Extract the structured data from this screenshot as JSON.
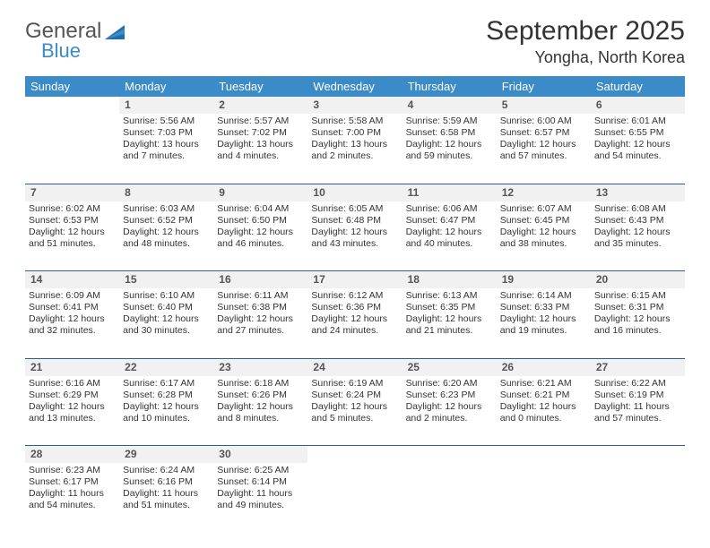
{
  "brand": {
    "word1": "General",
    "word2": "Blue",
    "word1_color": "#555555",
    "word2_color": "#3b8bc9"
  },
  "title": "September 2025",
  "location": "Yongha, North Korea",
  "colors": {
    "header_bg": "#3b8bc9",
    "header_text": "#ffffff",
    "daynum_bg": "#f1f1f1",
    "daynum_text": "#555555",
    "cell_text": "#333333",
    "rule": "#2f5e8a",
    "page_bg": "#ffffff"
  },
  "fonts": {
    "title_size_pt": 22,
    "location_size_pt": 14,
    "weekday_size_pt": 10,
    "cell_size_pt": 8
  },
  "calendar": {
    "type": "table",
    "weekdays": [
      "Sunday",
      "Monday",
      "Tuesday",
      "Wednesday",
      "Thursday",
      "Friday",
      "Saturday"
    ],
    "start_offset": 1,
    "days": [
      {
        "n": 1,
        "sr": "5:56 AM",
        "ss": "7:03 PM",
        "dl": "13 hours and 7 minutes."
      },
      {
        "n": 2,
        "sr": "5:57 AM",
        "ss": "7:02 PM",
        "dl": "13 hours and 4 minutes."
      },
      {
        "n": 3,
        "sr": "5:58 AM",
        "ss": "7:00 PM",
        "dl": "13 hours and 2 minutes."
      },
      {
        "n": 4,
        "sr": "5:59 AM",
        "ss": "6:58 PM",
        "dl": "12 hours and 59 minutes."
      },
      {
        "n": 5,
        "sr": "6:00 AM",
        "ss": "6:57 PM",
        "dl": "12 hours and 57 minutes."
      },
      {
        "n": 6,
        "sr": "6:01 AM",
        "ss": "6:55 PM",
        "dl": "12 hours and 54 minutes."
      },
      {
        "n": 7,
        "sr": "6:02 AM",
        "ss": "6:53 PM",
        "dl": "12 hours and 51 minutes."
      },
      {
        "n": 8,
        "sr": "6:03 AM",
        "ss": "6:52 PM",
        "dl": "12 hours and 48 minutes."
      },
      {
        "n": 9,
        "sr": "6:04 AM",
        "ss": "6:50 PM",
        "dl": "12 hours and 46 minutes."
      },
      {
        "n": 10,
        "sr": "6:05 AM",
        "ss": "6:48 PM",
        "dl": "12 hours and 43 minutes."
      },
      {
        "n": 11,
        "sr": "6:06 AM",
        "ss": "6:47 PM",
        "dl": "12 hours and 40 minutes."
      },
      {
        "n": 12,
        "sr": "6:07 AM",
        "ss": "6:45 PM",
        "dl": "12 hours and 38 minutes."
      },
      {
        "n": 13,
        "sr": "6:08 AM",
        "ss": "6:43 PM",
        "dl": "12 hours and 35 minutes."
      },
      {
        "n": 14,
        "sr": "6:09 AM",
        "ss": "6:41 PM",
        "dl": "12 hours and 32 minutes."
      },
      {
        "n": 15,
        "sr": "6:10 AM",
        "ss": "6:40 PM",
        "dl": "12 hours and 30 minutes."
      },
      {
        "n": 16,
        "sr": "6:11 AM",
        "ss": "6:38 PM",
        "dl": "12 hours and 27 minutes."
      },
      {
        "n": 17,
        "sr": "6:12 AM",
        "ss": "6:36 PM",
        "dl": "12 hours and 24 minutes."
      },
      {
        "n": 18,
        "sr": "6:13 AM",
        "ss": "6:35 PM",
        "dl": "12 hours and 21 minutes."
      },
      {
        "n": 19,
        "sr": "6:14 AM",
        "ss": "6:33 PM",
        "dl": "12 hours and 19 minutes."
      },
      {
        "n": 20,
        "sr": "6:15 AM",
        "ss": "6:31 PM",
        "dl": "12 hours and 16 minutes."
      },
      {
        "n": 21,
        "sr": "6:16 AM",
        "ss": "6:29 PM",
        "dl": "12 hours and 13 minutes."
      },
      {
        "n": 22,
        "sr": "6:17 AM",
        "ss": "6:28 PM",
        "dl": "12 hours and 10 minutes."
      },
      {
        "n": 23,
        "sr": "6:18 AM",
        "ss": "6:26 PM",
        "dl": "12 hours and 8 minutes."
      },
      {
        "n": 24,
        "sr": "6:19 AM",
        "ss": "6:24 PM",
        "dl": "12 hours and 5 minutes."
      },
      {
        "n": 25,
        "sr": "6:20 AM",
        "ss": "6:23 PM",
        "dl": "12 hours and 2 minutes."
      },
      {
        "n": 26,
        "sr": "6:21 AM",
        "ss": "6:21 PM",
        "dl": "12 hours and 0 minutes."
      },
      {
        "n": 27,
        "sr": "6:22 AM",
        "ss": "6:19 PM",
        "dl": "11 hours and 57 minutes."
      },
      {
        "n": 28,
        "sr": "6:23 AM",
        "ss": "6:17 PM",
        "dl": "11 hours and 54 minutes."
      },
      {
        "n": 29,
        "sr": "6:24 AM",
        "ss": "6:16 PM",
        "dl": "11 hours and 51 minutes."
      },
      {
        "n": 30,
        "sr": "6:25 AM",
        "ss": "6:14 PM",
        "dl": "11 hours and 49 minutes."
      }
    ],
    "labels": {
      "sunrise_prefix": "Sunrise: ",
      "sunset_prefix": "Sunset: ",
      "daylight_prefix": "Daylight: "
    }
  }
}
